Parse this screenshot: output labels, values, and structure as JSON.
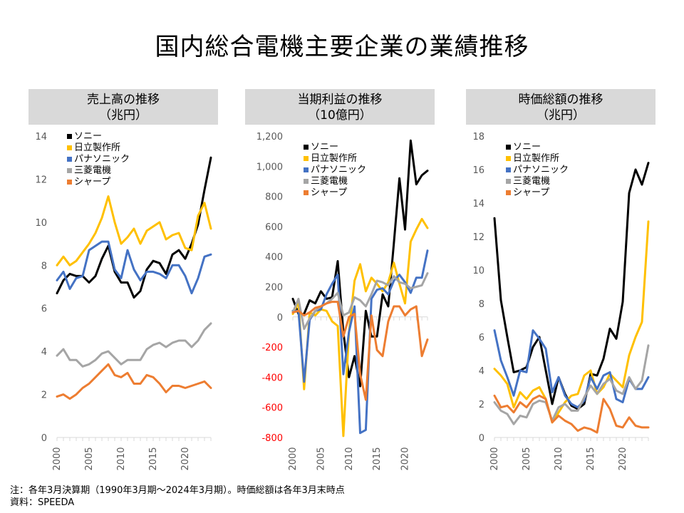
{
  "page": {
    "title": "国内総合電機主要企業の業績推移",
    "note": "注：各年3月決算期（1990年3月期～2024年3月期）。時価総額は各年3月末時点",
    "source": "資料：SPEEDA"
  },
  "colors": {
    "ソニー": "#000000",
    "日立製作所": "#ffc000",
    "パナソニック": "#4472c4",
    "三菱電機": "#a5a5a5",
    "シャープ": "#ed7d31"
  },
  "chart_data": [
    {
      "type": "line",
      "title": "売上高の推移",
      "subtitle": "（兆円）",
      "x": [
        2000,
        2001,
        2002,
        2003,
        2004,
        2005,
        2006,
        2007,
        2008,
        2009,
        2010,
        2011,
        2012,
        2013,
        2014,
        2015,
        2016,
        2017,
        2018,
        2019,
        2020,
        2021,
        2022,
        2023,
        2024
      ],
      "xticks": [
        2000,
        2005,
        2010,
        2015,
        2020
      ],
      "ylim": [
        0,
        14
      ],
      "yticks": [
        0,
        2,
        4,
        6,
        8,
        10,
        12,
        14
      ],
      "ytick_labels": [
        "0",
        "2",
        "4",
        "6",
        "8",
        "10",
        "12",
        "14"
      ],
      "grid": false,
      "legend": "top-left",
      "series": [
        {
          "name": "ソニー",
          "values": [
            6.7,
            7.3,
            7.6,
            7.5,
            7.5,
            7.2,
            7.5,
            8.3,
            8.9,
            7.7,
            7.2,
            7.2,
            6.5,
            6.8,
            7.8,
            8.2,
            8.1,
            7.6,
            8.5,
            8.7,
            8.3,
            9.0,
            9.9,
            11.5,
            13.0
          ]
        },
        {
          "name": "日立製作所",
          "values": [
            8.0,
            8.4,
            8.0,
            8.2,
            8.6,
            9.0,
            9.5,
            10.2,
            11.2,
            10.0,
            9.0,
            9.3,
            9.7,
            9.0,
            9.6,
            9.8,
            10.0,
            9.2,
            9.4,
            9.5,
            8.8,
            8.7,
            10.3,
            10.9,
            9.7
          ]
        },
        {
          "name": "パナソニック",
          "values": [
            7.3,
            7.7,
            6.9,
            7.4,
            7.5,
            8.7,
            8.9,
            9.1,
            9.1,
            7.8,
            7.4,
            8.7,
            7.8,
            7.3,
            7.7,
            7.7,
            7.6,
            7.4,
            8.0,
            8.0,
            7.5,
            6.7,
            7.4,
            8.4,
            8.5
          ]
        },
        {
          "name": "三菱電機",
          "values": [
            3.8,
            4.1,
            3.6,
            3.6,
            3.3,
            3.4,
            3.6,
            3.9,
            4.0,
            3.7,
            3.4,
            3.6,
            3.6,
            3.6,
            4.1,
            4.3,
            4.4,
            4.2,
            4.4,
            4.5,
            4.5,
            4.2,
            4.5,
            5.0,
            5.3
          ]
        },
        {
          "name": "シャープ",
          "values": [
            1.9,
            2.0,
            1.8,
            2.0,
            2.3,
            2.5,
            2.8,
            3.1,
            3.4,
            2.9,
            2.8,
            3.0,
            2.5,
            2.5,
            2.9,
            2.8,
            2.5,
            2.1,
            2.4,
            2.4,
            2.3,
            2.4,
            2.5,
            2.6,
            2.3
          ]
        }
      ]
    },
    {
      "type": "line",
      "title": "当期利益の推移",
      "subtitle": "（10億円）",
      "x": [
        2000,
        2001,
        2002,
        2003,
        2004,
        2005,
        2006,
        2007,
        2008,
        2009,
        2010,
        2011,
        2012,
        2013,
        2014,
        2015,
        2016,
        2017,
        2018,
        2019,
        2020,
        2021,
        2022,
        2023,
        2024
      ],
      "xticks": [
        2000,
        2005,
        2010,
        2015,
        2020
      ],
      "ylim": [
        -800,
        1200
      ],
      "yticks": [
        -800,
        -600,
        -400,
        -200,
        0,
        200,
        400,
        600,
        800,
        1000,
        1200
      ],
      "ytick_labels": [
        "-800",
        "-600",
        "-400",
        "-200",
        "0",
        "200",
        "400",
        "600",
        "800",
        "1,000",
        "1,200"
      ],
      "negative_tick_color": "#ff0000",
      "grid": false,
      "legend": "top-left",
      "series": [
        {
          "name": "ソニー",
          "values": [
            120,
            20,
            20,
            110,
            90,
            170,
            120,
            130,
            370,
            -100,
            -400,
            -260,
            -460,
            40,
            -130,
            -130,
            150,
            70,
            490,
            920,
            580,
            1170,
            880,
            940,
            970
          ]
        },
        {
          "name": "日立製作所",
          "values": [
            20,
            100,
            -480,
            30,
            10,
            50,
            40,
            -30,
            -60,
            -790,
            -100,
            240,
            350,
            170,
            260,
            220,
            170,
            230,
            360,
            220,
            90,
            500,
            580,
            650,
            590
          ]
        },
        {
          "name": "パナソニック",
          "values": [
            40,
            40,
            -430,
            -20,
            40,
            50,
            150,
            220,
            280,
            -380,
            -100,
            70,
            -770,
            -750,
            120,
            180,
            190,
            150,
            240,
            280,
            230,
            160,
            260,
            260,
            440
          ]
        },
        {
          "name": "三菱電機",
          "values": [
            30,
            120,
            -80,
            -10,
            40,
            70,
            90,
            120,
            160,
            10,
            30,
            130,
            110,
            70,
            150,
            240,
            230,
            210,
            270,
            230,
            220,
            190,
            200,
            210,
            290
          ]
        },
        {
          "name": "シャープ",
          "values": [
            30,
            40,
            10,
            30,
            60,
            70,
            90,
            100,
            100,
            -130,
            0,
            20,
            -380,
            -550,
            10,
            -220,
            -260,
            -30,
            70,
            70,
            10,
            50,
            70,
            -260,
            -150
          ]
        }
      ]
    },
    {
      "type": "line",
      "title": "時価総額の推移",
      "subtitle": "（兆円）",
      "x": [
        2000,
        2001,
        2002,
        2003,
        2004,
        2005,
        2006,
        2007,
        2008,
        2009,
        2010,
        2011,
        2012,
        2013,
        2014,
        2015,
        2016,
        2017,
        2018,
        2019,
        2020,
        2021,
        2022,
        2023,
        2024
      ],
      "xticks": [
        2000,
        2005,
        2010,
        2015,
        2020
      ],
      "ylim": [
        0,
        18
      ],
      "yticks": [
        0,
        2,
        4,
        6,
        8,
        10,
        12,
        14,
        16,
        18
      ],
      "ytick_labels": [
        "0",
        "2",
        "4",
        "6",
        "8",
        "10",
        "12",
        "14",
        "16",
        "18"
      ],
      "grid": false,
      "legend": "top-left",
      "series": [
        {
          "name": "ソニー",
          "values": [
            13.1,
            8.2,
            6.0,
            3.9,
            4.0,
            4.2,
            5.4,
            6.0,
            4.0,
            2.0,
            3.6,
            2.6,
            1.9,
            1.7,
            2.0,
            3.8,
            3.7,
            4.7,
            6.5,
            5.9,
            8.1,
            14.6,
            16.0,
            15.1,
            16.4
          ]
        },
        {
          "name": "日立製作所",
          "values": [
            4.1,
            3.7,
            3.2,
            1.8,
            2.7,
            2.3,
            2.8,
            3.0,
            2.3,
            0.9,
            1.5,
            2.1,
            2.5,
            2.6,
            3.7,
            4.0,
            2.6,
            3.0,
            3.8,
            3.4,
            3.0,
            4.9,
            6.0,
            6.9,
            12.9
          ]
        },
        {
          "name": "パナソニック",
          "values": [
            6.4,
            4.6,
            3.6,
            2.5,
            4.0,
            3.9,
            6.4,
            5.9,
            5.3,
            2.7,
            3.6,
            2.5,
            2.0,
            1.8,
            2.2,
            3.6,
            2.9,
            3.7,
            3.9,
            2.3,
            2.1,
            3.5,
            2.9,
            2.9,
            3.6
          ]
        },
        {
          "name": "三菱電機",
          "values": [
            2.1,
            1.6,
            1.4,
            0.8,
            1.3,
            1.2,
            2.0,
            2.2,
            2.1,
            1.0,
            1.8,
            2.0,
            1.6,
            1.6,
            2.4,
            3.1,
            2.6,
            3.2,
            3.5,
            2.8,
            2.6,
            3.6,
            2.9,
            3.4,
            5.5
          ]
        },
        {
          "name": "シャープ",
          "values": [
            2.5,
            1.8,
            1.9,
            1.5,
            2.1,
            1.8,
            2.3,
            2.5,
            2.3,
            0.9,
            1.3,
            1.0,
            0.8,
            0.4,
            0.6,
            0.5,
            0.3,
            2.3,
            1.7,
            0.7,
            0.6,
            1.2,
            0.7,
            0.6,
            0.6
          ]
        }
      ]
    }
  ]
}
